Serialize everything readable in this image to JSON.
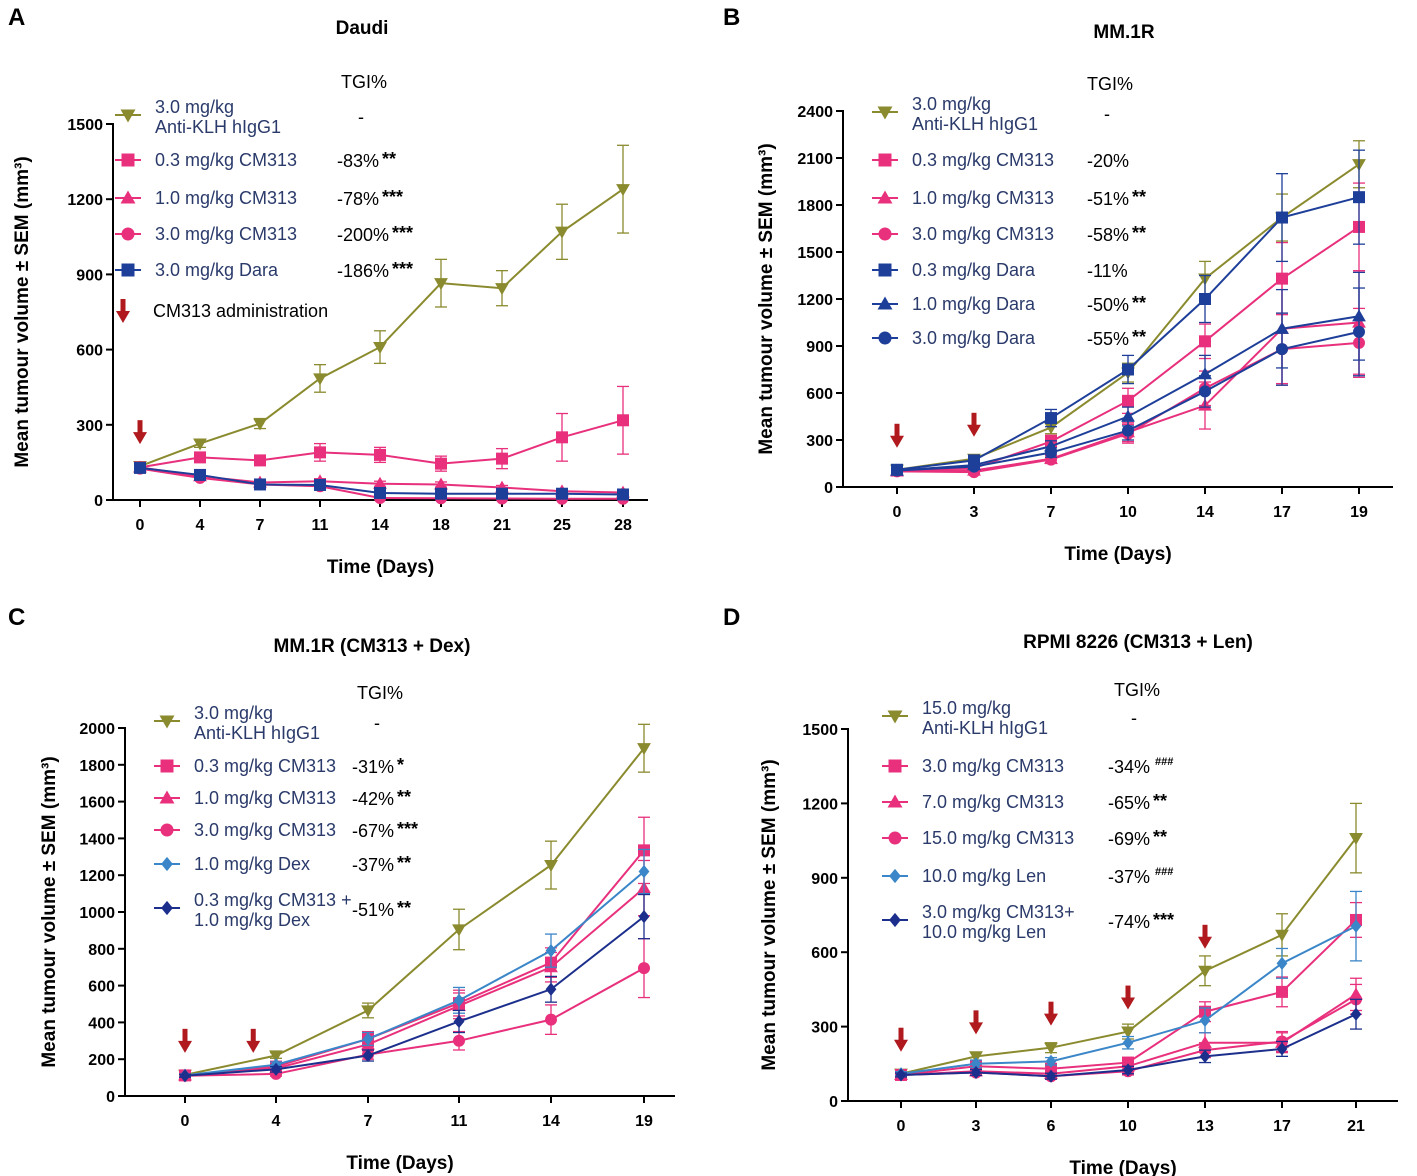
{
  "colors": {
    "olive": "#8a8a2e",
    "pink": "#e8307c",
    "navy": "#1e3f99",
    "lightblue": "#3a86c8",
    "darknavy": "#1c2f8c",
    "red": "#b0191e",
    "text": "#2a3a6a"
  },
  "chart_data": [
    {
      "type": "line",
      "panel": "A",
      "title": "Daudi",
      "xlabel": "Time (Days)",
      "ylabel": "Mean tumour volume ± SEM (mm³)",
      "ylim": [
        0,
        1500
      ],
      "yticks": [
        0,
        300,
        600,
        900,
        1200,
        1500
      ],
      "categories": [
        "0",
        "4",
        "7",
        "11",
        "14",
        "18",
        "21",
        "25",
        "28"
      ],
      "tgi_header": "TGI%",
      "arrow_label": "CM313 administration",
      "arrow_days": [
        "0"
      ],
      "series": [
        {
          "name": "3.0 mg/kg\nAnti-KLH hIgG1",
          "color": "olive",
          "marker": "triangle-down",
          "tgi": "-",
          "stars": "",
          "values": [
            135,
            225,
            305,
            485,
            610,
            865,
            845,
            1070,
            1240
          ],
          "err": [
            8,
            15,
            20,
            55,
            65,
            95,
            70,
            110,
            175
          ]
        },
        {
          "name": "0.3 mg/kg CM313",
          "color": "pink",
          "marker": "square",
          "tgi": "-83%",
          "stars": "**",
          "values": [
            130,
            170,
            158,
            190,
            180,
            145,
            165,
            250,
            318
          ],
          "err": [
            8,
            15,
            15,
            35,
            30,
            30,
            40,
            95,
            135
          ]
        },
        {
          "name": "1.0 mg/kg CM313",
          "color": "pink",
          "marker": "triangle",
          "tgi": "-78%",
          "stars": "***",
          "values": [
            130,
            95,
            70,
            75,
            65,
            62,
            50,
            35,
            30
          ],
          "err": [
            8,
            10,
            8,
            10,
            10,
            10,
            8,
            8,
            8
          ]
        },
        {
          "name": "3.0 mg/kg CM313",
          "color": "pink",
          "marker": "circle",
          "tgi": "-200%",
          "stars": "***",
          "values": [
            125,
            88,
            62,
            55,
            8,
            7,
            6,
            5,
            5
          ],
          "err": [
            8,
            8,
            8,
            8,
            3,
            3,
            2,
            2,
            2
          ]
        },
        {
          "name": "3.0 mg/kg Dara",
          "color": "navy",
          "marker": "square",
          "tgi": "-186%",
          "stars": "***",
          "values": [
            128,
            100,
            62,
            60,
            28,
            25,
            25,
            25,
            22
          ],
          "err": [
            8,
            10,
            8,
            8,
            5,
            5,
            5,
            5,
            5
          ]
        }
      ]
    },
    {
      "type": "line",
      "panel": "B",
      "title": "MM.1R",
      "xlabel": "Time (Days)",
      "ylabel": "Mean tumour volume ± SEM (mm³)",
      "ylim": [
        0,
        2400
      ],
      "yticks": [
        0,
        300,
        600,
        900,
        1200,
        1500,
        1800,
        2100,
        2400
      ],
      "categories": [
        "0",
        "3",
        "7",
        "10",
        "14",
        "17",
        "19"
      ],
      "tgi_header": "TGI%",
      "arrow_days": [
        "0",
        "3"
      ],
      "series": [
        {
          "name": "3.0 mg/kg\nAnti-KLH hIgG1",
          "color": "olive",
          "marker": "triangle-down",
          "tgi": "-",
          "stars": "",
          "values": [
            110,
            180,
            380,
            730,
            1330,
            1720,
            2060
          ],
          "err": [
            10,
            15,
            40,
            60,
            110,
            150,
            150
          ]
        },
        {
          "name": "0.3 mg/kg CM313",
          "color": "pink",
          "marker": "square",
          "tgi": "-20%",
          "stars": "",
          "values": [
            105,
            120,
            290,
            550,
            930,
            1330,
            1660
          ],
          "err": [
            10,
            12,
            40,
            80,
            110,
            230,
            280
          ]
        },
        {
          "name": "1.0 mg/kg CM313",
          "color": "pink",
          "marker": "triangle",
          "tgi": "-51%",
          "stars": "**",
          "values": [
            100,
            105,
            180,
            350,
            520,
            1010,
            1050
          ],
          "err": [
            10,
            10,
            25,
            60,
            150,
            350,
            330
          ]
        },
        {
          "name": "3.0 mg/kg CM313",
          "color": "pink",
          "marker": "circle",
          "tgi": "-58%",
          "stars": "**",
          "values": [
            100,
            95,
            175,
            340,
            630,
            880,
            920
          ],
          "err": [
            10,
            10,
            25,
            60,
            110,
            230,
            220
          ]
        },
        {
          "name": "0.3 mg/kg Dara",
          "color": "navy",
          "marker": "square",
          "tgi": "-11%",
          "stars": "",
          "values": [
            110,
            170,
            440,
            750,
            1200,
            1720,
            1850
          ],
          "err": [
            10,
            15,
            55,
            90,
            150,
            280,
            300
          ]
        },
        {
          "name": "1.0 mg/kg Dara",
          "color": "navy",
          "marker": "triangle",
          "tgi": "-50%",
          "stars": "**",
          "values": [
            105,
            140,
            260,
            450,
            720,
            1010,
            1090
          ],
          "err": [
            10,
            15,
            35,
            60,
            120,
            250,
            280
          ]
        },
        {
          "name": "3.0 mg/kg Dara",
          "color": "navy",
          "marker": "circle",
          "tgi": "-55%",
          "stars": "**",
          "values": [
            105,
            130,
            220,
            360,
            610,
            880,
            990
          ],
          "err": [
            10,
            12,
            30,
            60,
            100,
            230,
            280
          ]
        }
      ]
    },
    {
      "type": "line",
      "panel": "C",
      "title": "MM.1R (CM313 + Dex)",
      "xlabel": "Time (Days)",
      "ylabel": "Mean tumour volume ± SEM (mm³)",
      "ylim": [
        0,
        2000
      ],
      "yticks": [
        0,
        200,
        400,
        600,
        800,
        1000,
        1200,
        1400,
        1600,
        1800,
        2000
      ],
      "categories": [
        "0",
        "4",
        "7",
        "11",
        "14",
        "19"
      ],
      "tgi_header": "TGI%",
      "arrow_days": [
        "0",
        "3"
      ],
      "series": [
        {
          "name": "3.0 mg/kg\nAnti-KLH hIgG1",
          "color": "olive",
          "marker": "triangle-down",
          "tgi": "-",
          "stars": "",
          "values": [
            115,
            220,
            465,
            905,
            1255,
            1890
          ],
          "err": [
            8,
            15,
            40,
            110,
            130,
            130
          ]
        },
        {
          "name": "0.3 mg/kg CM313",
          "color": "pink",
          "marker": "square",
          "tgi": "-31%",
          "stars": "*",
          "values": [
            112,
            160,
            310,
            505,
            725,
            1335
          ],
          "err": [
            8,
            15,
            40,
            70,
            80,
            180
          ]
        },
        {
          "name": "1.0 mg/kg CM313",
          "color": "pink",
          "marker": "triangle",
          "tgi": "-42%",
          "stars": "**",
          "values": [
            112,
            150,
            280,
            490,
            700,
            1130
          ],
          "err": [
            8,
            15,
            35,
            70,
            80,
            150
          ]
        },
        {
          "name": "3.0 mg/kg CM313",
          "color": "pink",
          "marker": "circle",
          "tgi": "-67%",
          "stars": "***",
          "values": [
            110,
            120,
            225,
            300,
            415,
            695
          ],
          "err": [
            8,
            12,
            25,
            50,
            80,
            160
          ]
        },
        {
          "name": "1.0 mg/kg Dex",
          "color": "lightblue",
          "marker": "diamond",
          "tgi": "-37%",
          "stars": "**",
          "values": [
            112,
            170,
            310,
            520,
            790,
            1220
          ],
          "err": [
            8,
            15,
            35,
            70,
            90,
            120
          ]
        },
        {
          "name": "0.3 mg/kg CM313 +\n1.0 mg/kg Dex",
          "color": "darknavy",
          "marker": "diamond",
          "tgi": "-51%",
          "stars": "**",
          "values": [
            110,
            145,
            220,
            405,
            580,
            975
          ],
          "err": [
            8,
            15,
            30,
            60,
            70,
            120
          ]
        }
      ]
    },
    {
      "type": "line",
      "panel": "D",
      "title": "RPMI 8226 (CM313 + Len)",
      "xlabel": "Time (Days)",
      "ylabel": "Mean tumour volume ± SEM (mm³)",
      "ylim": [
        0,
        1500
      ],
      "yticks": [
        0,
        300,
        600,
        900,
        1200,
        1500
      ],
      "categories": [
        "0",
        "3",
        "6",
        "10",
        "13",
        "17",
        "21"
      ],
      "tgi_header": "TGI%",
      "arrow_days": [
        "0",
        "3",
        "6",
        "10",
        "13"
      ],
      "series": [
        {
          "name": "15.0 mg/kg\nAnti-KLH hIgG1",
          "color": "olive",
          "marker": "triangle-down",
          "tgi": "-",
          "stars": "",
          "values": [
            110,
            180,
            215,
            280,
            525,
            670,
            1060
          ],
          "err": [
            8,
            15,
            20,
            30,
            60,
            85,
            140
          ]
        },
        {
          "name": "3.0 mg/kg CM313",
          "color": "pink",
          "marker": "square",
          "tgi": "-34%",
          "stars": "###",
          "values": [
            105,
            140,
            130,
            155,
            360,
            440,
            730
          ],
          "err": [
            8,
            15,
            15,
            20,
            40,
            60,
            70
          ]
        },
        {
          "name": "7.0 mg/kg CM313",
          "color": "pink",
          "marker": "triangle",
          "tgi": "-65%",
          "stars": "**",
          "values": [
            105,
            120,
            110,
            140,
            235,
            235,
            430
          ],
          "err": [
            8,
            12,
            12,
            15,
            40,
            40,
            65
          ]
        },
        {
          "name": "15.0 mg/kg CM313",
          "color": "pink",
          "marker": "circle",
          "tgi": "-69%",
          "stars": "**",
          "values": [
            105,
            115,
            100,
            120,
            205,
            240,
            410
          ],
          "err": [
            8,
            12,
            12,
            15,
            30,
            40,
            60
          ]
        },
        {
          "name": "10.0 mg/kg Len",
          "color": "lightblue",
          "marker": "diamond",
          "tgi": "-37%",
          "stars": "###",
          "values": [
            110,
            150,
            160,
            235,
            325,
            555,
            705
          ],
          "err": [
            8,
            15,
            15,
            25,
            50,
            60,
            140
          ]
        },
        {
          "name": "3.0 mg/kg CM313+\n10.0 mg/kg Len",
          "color": "darknavy",
          "marker": "diamond",
          "tgi": "-74%",
          "stars": "***",
          "values": [
            105,
            115,
            100,
            125,
            180,
            210,
            350
          ],
          "err": [
            8,
            12,
            12,
            15,
            25,
            30,
            60
          ]
        }
      ]
    }
  ]
}
